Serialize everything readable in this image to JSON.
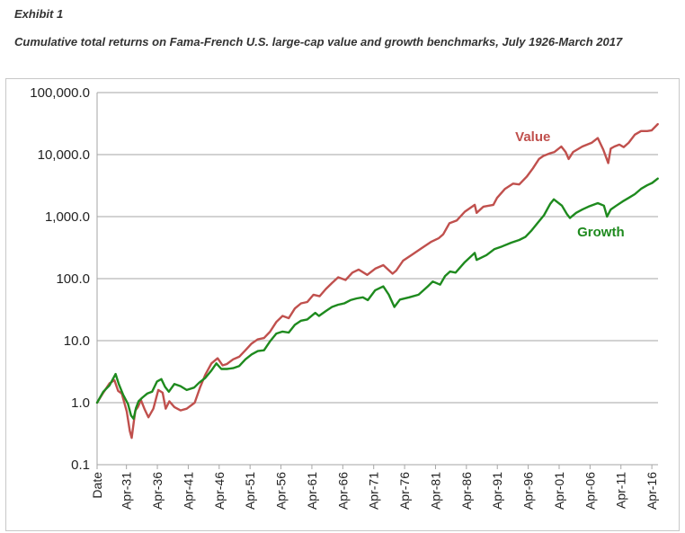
{
  "header": {
    "exhibit": "Exhibit 1",
    "title": "Cumulative total returns on Fama-French U.S. large-cap value and growth benchmarks, July 1926-March 2017"
  },
  "chart_data": {
    "type": "line",
    "title": "Cumulative total returns on Fama-French U.S. large-cap value and growth benchmarks, July 1926-March 2017",
    "xlabel": "",
    "ylabel": "",
    "yscale": "log",
    "ylim": [
      0.1,
      100000
    ],
    "grid": true,
    "xlim": [
      1926.5,
      2017.25
    ],
    "y_ticks": [
      {
        "value": 0.1,
        "label": "0.1"
      },
      {
        "value": 1,
        "label": "1.0"
      },
      {
        "value": 10,
        "label": "10.0"
      },
      {
        "value": 100,
        "label": "100.0"
      },
      {
        "value": 1000,
        "label": "1,000.0"
      },
      {
        "value": 10000,
        "label": "10,000.0"
      },
      {
        "value": 100000,
        "label": "100,000.0"
      }
    ],
    "x_ticks": [
      {
        "value": 1926.5,
        "label": "Date"
      },
      {
        "value": 1931.25,
        "label": "Apr-31"
      },
      {
        "value": 1936.25,
        "label": "Apr-36"
      },
      {
        "value": 1941.25,
        "label": "Apr-41"
      },
      {
        "value": 1946.25,
        "label": "Apr-46"
      },
      {
        "value": 1951.25,
        "label": "Apr-51"
      },
      {
        "value": 1956.25,
        "label": "Apr-56"
      },
      {
        "value": 1961.25,
        "label": "Apr-61"
      },
      {
        "value": 1966.25,
        "label": "Apr-66"
      },
      {
        "value": 1971.25,
        "label": "Apr-71"
      },
      {
        "value": 1976.25,
        "label": "Apr-76"
      },
      {
        "value": 1981.25,
        "label": "Apr-81"
      },
      {
        "value": 1986.25,
        "label": "Apr-86"
      },
      {
        "value": 1991.25,
        "label": "Apr-91"
      },
      {
        "value": 1996.25,
        "label": "Apr-96"
      },
      {
        "value": 2001.25,
        "label": "Apr-01"
      },
      {
        "value": 2006.25,
        "label": "Apr-06"
      },
      {
        "value": 2011.25,
        "label": "Apr-11"
      },
      {
        "value": 2016.25,
        "label": "Apr-16"
      }
    ],
    "series": [
      {
        "name": "Value",
        "color": "#c0504d",
        "label": "Value",
        "x": [
          1926.5,
          1927.5,
          1928.5,
          1929.3,
          1929.9,
          1930.5,
          1931.3,
          1931.8,
          1932.1,
          1932.45,
          1932.7,
          1933.1,
          1933.6,
          1934.2,
          1934.8,
          1935.6,
          1936.4,
          1937.1,
          1937.6,
          1938.2,
          1939.0,
          1940.0,
          1941.0,
          1942.3,
          1943.2,
          1944.0,
          1945.0,
          1946.0,
          1946.8,
          1947.5,
          1948.5,
          1949.5,
          1950.5,
          1951.5,
          1952.5,
          1953.5,
          1954.5,
          1955.5,
          1956.5,
          1957.5,
          1958.5,
          1959.5,
          1960.5,
          1961.5,
          1962.5,
          1963.5,
          1964.5,
          1965.5,
          1966.7,
          1967.8,
          1968.8,
          1970.2,
          1971.5,
          1972.8,
          1974.3,
          1974.9,
          1976.0,
          1977.5,
          1979.0,
          1980.5,
          1981.8,
          1982.5,
          1983.5,
          1984.7,
          1986.0,
          1987.6,
          1987.9,
          1989.0,
          1990.6,
          1991.2,
          1992.5,
          1993.8,
          1994.8,
          1996.0,
          1997.0,
          1998.0,
          1998.7,
          1999.8,
          2000.5,
          2001.6,
          2002.3,
          2002.8,
          2003.5,
          2005.0,
          2006.5,
          2007.5,
          2008.4,
          2009.2,
          2009.6,
          2010.2,
          2011.0,
          2011.7,
          2012.5,
          2013.5,
          2014.5,
          2015.5,
          2016.2,
          2017.2
        ],
        "y": [
          1.0,
          1.45,
          2.05,
          2.3,
          1.55,
          1.4,
          0.72,
          0.35,
          0.27,
          0.5,
          0.75,
          0.85,
          1.1,
          0.78,
          0.58,
          0.8,
          1.6,
          1.45,
          0.8,
          1.05,
          0.85,
          0.75,
          0.8,
          1.0,
          1.8,
          2.8,
          4.3,
          5.2,
          4.0,
          4.2,
          5.0,
          5.5,
          7.0,
          9.0,
          10.5,
          11.0,
          14.0,
          20.0,
          25.0,
          23.0,
          33.0,
          40.0,
          42.0,
          55.0,
          52.0,
          68.0,
          85.0,
          105.0,
          95.0,
          125.0,
          140.0,
          115.0,
          145.0,
          165.0,
          120.0,
          135.0,
          195.0,
          245.0,
          310.0,
          390.0,
          450.0,
          520.0,
          780.0,
          870.0,
          1200.0,
          1550.0,
          1150.0,
          1450.0,
          1550.0,
          2000.0,
          2800.0,
          3400.0,
          3300.0,
          4400.0,
          6000.0,
          8500.0,
          9500.0,
          10500.0,
          11000.0,
          13500.0,
          11000.0,
          8500.0,
          11000.0,
          13500.0,
          15500.0,
          18500.0,
          12000.0,
          7300.0,
          12500.0,
          13500.0,
          14500.0,
          13200.0,
          15500.0,
          21000.0,
          24000.0,
          24000.0,
          24500.0,
          31000.0
        ]
      },
      {
        "name": "Growth",
        "color": "#1e8a1e",
        "label": "Growth",
        "x": [
          1926.5,
          1927.5,
          1928.5,
          1929.5,
          1930.0,
          1930.7,
          1931.5,
          1932.0,
          1932.4,
          1932.8,
          1933.2,
          1933.8,
          1934.6,
          1935.4,
          1936.2,
          1936.9,
          1937.5,
          1938.1,
          1939.0,
          1940.0,
          1941.0,
          1942.2,
          1943.0,
          1944.0,
          1945.0,
          1945.8,
          1946.6,
          1947.5,
          1948.5,
          1949.5,
          1950.5,
          1951.5,
          1952.5,
          1953.5,
          1954.5,
          1955.5,
          1956.5,
          1957.5,
          1958.5,
          1959.5,
          1960.5,
          1961.8,
          1962.4,
          1963.5,
          1964.5,
          1965.5,
          1966.5,
          1967.5,
          1968.5,
          1969.5,
          1970.3,
          1971.5,
          1972.8,
          1973.7,
          1974.6,
          1975.5,
          1977.0,
          1978.5,
          1980.0,
          1980.8,
          1982.0,
          1982.8,
          1983.6,
          1984.5,
          1986.0,
          1987.6,
          1987.9,
          1989.5,
          1990.8,
          1992.0,
          1993.5,
          1994.8,
          1995.8,
          1996.8,
          1997.8,
          1998.8,
          1999.8,
          2000.4,
          2001.0,
          2001.7,
          2002.5,
          2003.0,
          2004.0,
          2005.0,
          2006.0,
          2007.5,
          2008.5,
          2009.0,
          2009.6,
          2010.5,
          2011.5,
          2012.5,
          2013.5,
          2014.5,
          2015.5,
          2016.3,
          2017.2
        ],
        "y": [
          1.0,
          1.5,
          1.9,
          2.9,
          2.0,
          1.35,
          0.95,
          0.62,
          0.55,
          0.82,
          1.05,
          1.2,
          1.4,
          1.5,
          2.2,
          2.4,
          1.8,
          1.5,
          2.0,
          1.85,
          1.6,
          1.75,
          2.1,
          2.5,
          3.3,
          4.3,
          3.5,
          3.5,
          3.6,
          3.9,
          5.0,
          6.0,
          6.8,
          7.0,
          9.8,
          13.0,
          14.0,
          13.5,
          18.0,
          21.0,
          22.0,
          28.0,
          25.0,
          30.0,
          35.0,
          38.0,
          40.0,
          45.0,
          48.0,
          50.0,
          45.0,
          65.0,
          75.0,
          55.0,
          35.0,
          46.0,
          50.0,
          55.0,
          75.0,
          90.0,
          80.0,
          110.0,
          130.0,
          125.0,
          185.0,
          260.0,
          200.0,
          240.0,
          300.0,
          330.0,
          380.0,
          420.0,
          470.0,
          600.0,
          800.0,
          1050.0,
          1600.0,
          1900.0,
          1700.0,
          1500.0,
          1100.0,
          950.0,
          1150.0,
          1300.0,
          1450.0,
          1650.0,
          1500.0,
          1000.0,
          1300.0,
          1500.0,
          1750.0,
          2000.0,
          2300.0,
          2800.0,
          3200.0,
          3500.0,
          4100.0
        ]
      }
    ]
  }
}
